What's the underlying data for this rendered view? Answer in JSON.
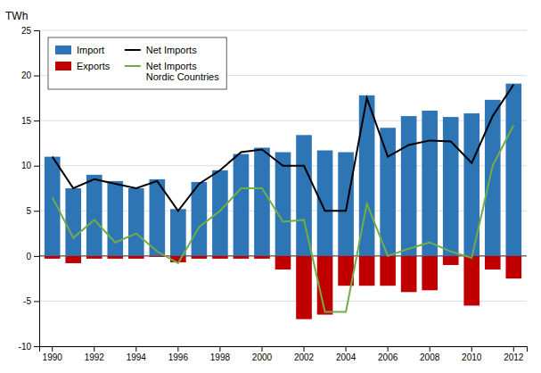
{
  "chart_data": {
    "type": "bar",
    "y_label": "TWh",
    "categories": [
      "1990",
      null,
      "1992",
      null,
      "1994",
      null,
      "1996",
      null,
      "1998",
      null,
      "2000",
      null,
      "2002",
      null,
      "2004",
      null,
      "2006",
      null,
      "2008",
      null,
      "2010",
      null,
      "2012"
    ],
    "series": [
      {
        "name": "Import",
        "type": "bar",
        "color": "#2E75B6",
        "values": [
          11.0,
          7.5,
          9.0,
          8.3,
          7.5,
          8.5,
          5.2,
          8.2,
          9.5,
          11.3,
          12.0,
          11.5,
          13.4,
          11.7,
          11.5,
          17.8,
          14.2,
          15.5,
          16.1,
          15.4,
          15.8,
          17.3,
          19.1
        ]
      },
      {
        "name": "Exports",
        "type": "bar",
        "color": "#C00000",
        "values": [
          -0.3,
          -0.8,
          -0.3,
          -0.3,
          -0.3,
          -0.1,
          -0.7,
          -0.3,
          -0.3,
          -0.3,
          -0.3,
          -1.5,
          -7.0,
          -6.5,
          -3.3,
          -3.3,
          -3.3,
          -4.0,
          -3.8,
          -1.0,
          -5.5,
          -1.5,
          -2.5
        ]
      },
      {
        "name": "Net Imports",
        "type": "line",
        "color": "#000000",
        "values": [
          11.0,
          7.5,
          8.5,
          8.0,
          7.5,
          8.3,
          5.0,
          8.0,
          9.5,
          11.5,
          11.8,
          10.0,
          10.0,
          5.0,
          5.0,
          17.5,
          11.0,
          12.3,
          12.8,
          12.7,
          10.3,
          15.5,
          19.0
        ]
      },
      {
        "name": "Net Imports\nNordic Countries",
        "type": "line",
        "color": "#70AD47",
        "values": [
          6.5,
          2.0,
          4.0,
          1.5,
          2.5,
          0.5,
          -0.8,
          3.2,
          5.0,
          7.5,
          7.5,
          3.8,
          4.0,
          -6.2,
          -6.2,
          5.8,
          0.0,
          0.8,
          1.5,
          0.5,
          -0.2,
          10.0,
          14.5
        ]
      }
    ],
    "ylim": [
      -10,
      25
    ],
    "yticks": [
      -10,
      -5,
      0,
      5,
      10,
      15,
      20,
      25
    ],
    "grid": true,
    "legend": "upper left"
  }
}
